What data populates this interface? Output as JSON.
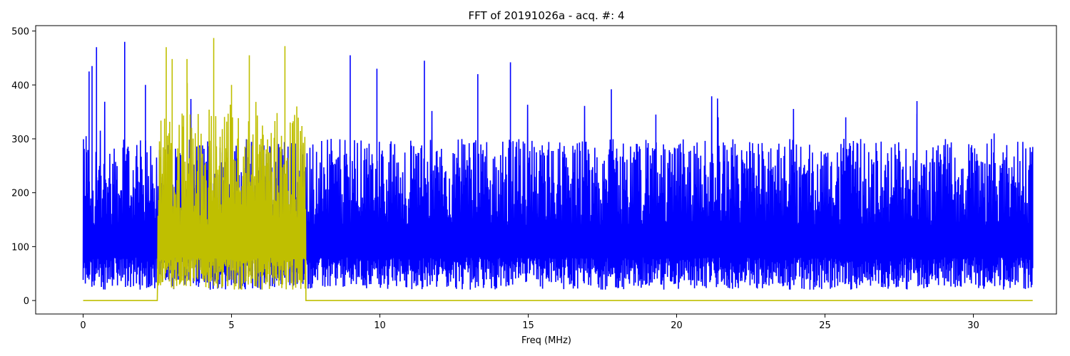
{
  "chart_data": {
    "type": "line",
    "title": "FFT of 20191026a - acq. #: 4",
    "xlabel": "Freq (MHz)",
    "ylabel": "",
    "xlim": [
      -1.6,
      32.8
    ],
    "ylim": [
      -25,
      510
    ],
    "xticks": [
      0,
      5,
      10,
      15,
      20,
      25,
      30
    ],
    "xtick_labels": [
      "0",
      "5",
      "10",
      "15",
      "20",
      "25",
      "30"
    ],
    "yticks": [
      0,
      100,
      200,
      300,
      400,
      500
    ],
    "ytick_labels": [
      "0",
      "100",
      "200",
      "300",
      "400",
      "500"
    ],
    "grid": false,
    "series": [
      {
        "color": "#0000ff",
        "description": "FFT magnitude spectrum (noisy, ~0–480)",
        "x_range": [
          0,
          32
        ],
        "baseline": 130,
        "typical_peak": 300,
        "max_value": 480,
        "peaks": [
          {
            "x": 0.1,
            "y": 305
          },
          {
            "x": 0.2,
            "y": 425
          },
          {
            "x": 0.3,
            "y": 435
          },
          {
            "x": 0.45,
            "y": 470
          },
          {
            "x": 1.4,
            "y": 480
          },
          {
            "x": 2.1,
            "y": 400
          },
          {
            "x": 9.0,
            "y": 455
          },
          {
            "x": 9.9,
            "y": 430
          },
          {
            "x": 11.5,
            "y": 445
          },
          {
            "x": 13.3,
            "y": 420
          },
          {
            "x": 14.4,
            "y": 442
          },
          {
            "x": 17.8,
            "y": 392
          },
          {
            "x": 19.3,
            "y": 345
          },
          {
            "x": 21.4,
            "y": 340
          },
          {
            "x": 25.7,
            "y": 340
          },
          {
            "x": 28.1,
            "y": 370
          },
          {
            "x": 30.7,
            "y": 310
          },
          {
            "x": 32.0,
            "y": 285
          }
        ]
      },
      {
        "color": "#bfbf00",
        "description": "Band-pass filtered spectrum, 2.5–7.5 MHz, zero elsewhere",
        "x_range": [
          0,
          32
        ],
        "band": [
          2.5,
          7.5
        ],
        "baseline": 150,
        "max_value": 487,
        "peaks": [
          {
            "x": 2.8,
            "y": 470
          },
          {
            "x": 3.0,
            "y": 448
          },
          {
            "x": 3.5,
            "y": 448
          },
          {
            "x": 4.4,
            "y": 487
          },
          {
            "x": 5.6,
            "y": 455
          },
          {
            "x": 6.8,
            "y": 472
          },
          {
            "x": 5.0,
            "y": 400
          },
          {
            "x": 7.2,
            "y": 360
          }
        ]
      }
    ]
  }
}
